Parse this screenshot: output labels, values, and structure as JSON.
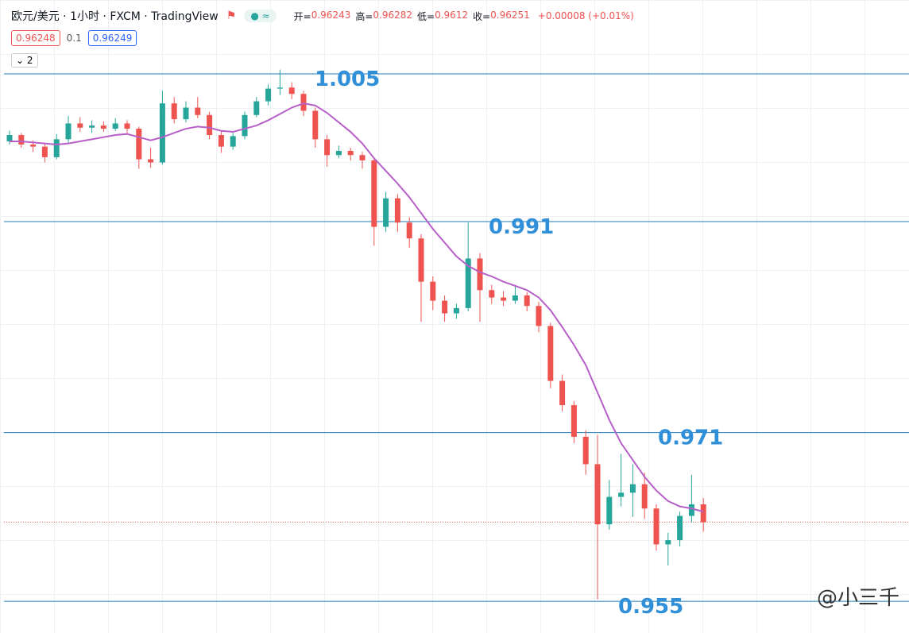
{
  "header": {
    "symbol": "欧元/美元 · 1小时 · FXCM · TradingView",
    "ohlc": [
      {
        "label": "开=",
        "value": 0.96243
      },
      {
        "label": "高=",
        "value": 0.96282
      },
      {
        "label": "低=",
        "value": 0.9612
      },
      {
        "label": "收=",
        "value": 0.96251
      }
    ],
    "change": "+0.00008 (+0.01%)",
    "sell": "0.96248",
    "spread": "0.1",
    "buy": "0.96249",
    "indicators": "2"
  },
  "watermark": "@小三千",
  "chart_data": {
    "type": "candlestick",
    "ylim": [
      0.952,
      1.012
    ],
    "up_color": "#26a69a",
    "down_color": "#ef5350",
    "ma_color": "#b65fc8",
    "level_color": "#1e7bb8",
    "label_color": "#2f8fd8",
    "levels": [
      1.005,
      0.991,
      0.971,
      0.955
    ],
    "candles": [
      [
        0.9986,
        0.9996,
        0.9983,
        0.9992
      ],
      [
        0.9992,
        0.9994,
        0.998,
        0.9983
      ],
      [
        0.9983,
        0.9987,
        0.9976,
        0.9981
      ],
      [
        0.9981,
        0.9984,
        0.9966,
        0.9971
      ],
      [
        0.9971,
        0.9993,
        0.9969,
        0.9988
      ],
      [
        0.9988,
        1.001,
        0.9985,
        1.0003
      ],
      [
        1.0003,
        1.0009,
        0.9995,
        0.9999
      ],
      [
        0.9999,
        1.0006,
        0.9994,
        1.0001
      ],
      [
        1.0001,
        1.0005,
        0.9995,
        0.9998
      ],
      [
        0.9998,
        1.0008,
        0.9996,
        1.0003
      ],
      [
        1.0003,
        1.0006,
        0.9994,
        0.9998
      ],
      [
        0.9998,
        1.0,
        0.996,
        0.9969
      ],
      [
        0.9969,
        0.998,
        0.9961,
        0.9966
      ],
      [
        0.9966,
        1.0034,
        0.9964,
        1.0022
      ],
      [
        1.0022,
        1.0028,
        1.0003,
        1.0007
      ],
      [
        1.0007,
        1.0024,
        1.0004,
        1.0018
      ],
      [
        1.0018,
        1.0028,
        1.0008,
        1.0011
      ],
      [
        1.0011,
        1.0014,
        0.9988,
        0.9992
      ],
      [
        0.9992,
        0.9996,
        0.9975,
        0.9981
      ],
      [
        0.9981,
        0.9994,
        0.9978,
        0.9991
      ],
      [
        0.9991,
        1.0014,
        0.9988,
        1.0011
      ],
      [
        1.0011,
        1.0028,
        1.0009,
        1.0024
      ],
      [
        1.0024,
        1.004,
        1.002,
        1.0036
      ],
      [
        1.0036,
        1.0054,
        1.003,
        1.0037
      ],
      [
        1.0037,
        1.0042,
        1.0026,
        1.0031
      ],
      [
        1.0031,
        1.0034,
        1.001,
        1.0015
      ],
      [
        1.0015,
        1.0018,
        0.998,
        0.9988
      ],
      [
        0.9988,
        0.9992,
        0.9962,
        0.9973
      ],
      [
        0.9973,
        0.9982,
        0.997,
        0.9977
      ],
      [
        0.9977,
        0.998,
        0.9968,
        0.9973
      ],
      [
        0.9973,
        0.9976,
        0.996,
        0.9968
      ],
      [
        0.9968,
        0.997,
        0.9887,
        0.9905
      ],
      [
        0.9905,
        0.9938,
        0.99,
        0.9932
      ],
      [
        0.9932,
        0.9936,
        0.99,
        0.9909
      ],
      [
        0.9909,
        0.9914,
        0.9885,
        0.9894
      ],
      [
        0.9894,
        0.9898,
        0.9815,
        0.9853
      ],
      [
        0.9853,
        0.9858,
        0.9826,
        0.9835
      ],
      [
        0.9835,
        0.984,
        0.9815,
        0.9823
      ],
      [
        0.9823,
        0.9832,
        0.9818,
        0.9828
      ],
      [
        0.9828,
        0.9909,
        0.9825,
        0.9875
      ],
      [
        0.9875,
        0.988,
        0.9815,
        0.9845
      ],
      [
        0.9845,
        0.985,
        0.9832,
        0.9838
      ],
      [
        0.9838,
        0.9844,
        0.983,
        0.9835
      ],
      [
        0.9835,
        0.985,
        0.9832,
        0.984
      ],
      [
        0.984,
        0.9843,
        0.9825,
        0.983
      ],
      [
        0.983,
        0.9834,
        0.9805,
        0.9811
      ],
      [
        0.9811,
        0.9814,
        0.9752,
        0.9759
      ],
      [
        0.9759,
        0.9765,
        0.973,
        0.9736
      ],
      [
        0.9736,
        0.974,
        0.97,
        0.9706
      ],
      [
        0.9706,
        0.9712,
        0.967,
        0.968
      ],
      [
        0.968,
        0.9708,
        0.9552,
        0.9623
      ],
      [
        0.9623,
        0.9665,
        0.9618,
        0.9649
      ],
      [
        0.9649,
        0.969,
        0.964,
        0.9653
      ],
      [
        0.9653,
        0.968,
        0.963,
        0.9661
      ],
      [
        0.9661,
        0.9672,
        0.9628,
        0.9638
      ],
      [
        0.9638,
        0.9642,
        0.9598,
        0.9604
      ],
      [
        0.9604,
        0.9615,
        0.9584,
        0.9608
      ],
      [
        0.9608,
        0.9635,
        0.9602,
        0.9631
      ],
      [
        0.9631,
        0.967,
        0.9625,
        0.9642
      ],
      [
        0.9642,
        0.9648,
        0.9616,
        0.9625
      ]
    ],
    "ma": [
      0.9986,
      0.9986,
      0.9985,
      0.9984,
      0.9983,
      0.9984,
      0.9986,
      0.9988,
      0.999,
      0.9992,
      0.9993,
      0.999,
      0.9987,
      0.999,
      0.9994,
      0.9998,
      1.0,
      0.9999,
      0.9996,
      0.9995,
      0.9998,
      1.0001,
      1.0006,
      1.0012,
      1.0018,
      1.0022,
      1.002,
      1.0013,
      1.0004,
      0.9995,
      0.9984,
      0.997,
      0.9958,
      0.9946,
      0.9933,
      0.9918,
      0.9903,
      0.989,
      0.9877,
      0.9868,
      0.9862,
      0.9858,
      0.9853,
      0.9849,
      0.9845,
      0.9838,
      0.9826,
      0.981,
      0.9793,
      0.9774,
      0.9748,
      0.9722,
      0.97,
      0.9684,
      0.9668,
      0.9655,
      0.9645,
      0.964,
      0.9638,
      0.9635
    ]
  }
}
